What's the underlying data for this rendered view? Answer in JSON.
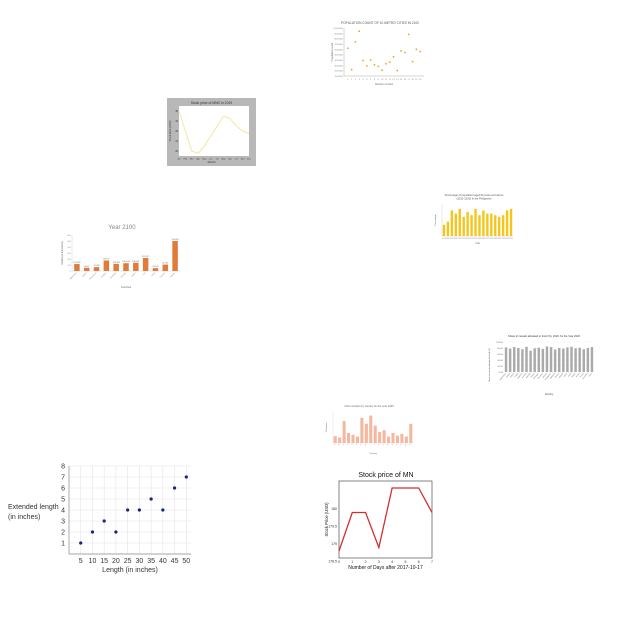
{
  "chart_data": [
    {
      "id": "pop-scatter",
      "type": "scatter",
      "title": "POPULATION COUNT OF 10 METRO CITIES IN 2100",
      "xlabel": "Number of cities",
      "ylabel": "Population count",
      "x": [
        1,
        2,
        3,
        4,
        5,
        6,
        7,
        8,
        9,
        10,
        11,
        12,
        13,
        14,
        15,
        16,
        17,
        18,
        19,
        20
      ],
      "y": [
        5200000,
        1200000,
        6400000,
        8400000,
        2900000,
        1900000,
        3000000,
        2100000,
        1800000,
        1100000,
        2300000,
        2600000,
        3600000,
        1000000,
        4700000,
        4400000,
        7800000,
        2700000,
        5000000,
        4600000
      ],
      "xlim": [
        0,
        21
      ],
      "ylim": [
        0,
        9000000
      ],
      "yticks": [
        "10000000",
        "9000000",
        "8000000",
        "7000000",
        "6000000",
        "5000000",
        "4000000",
        "3000000",
        "2000000",
        "1000000"
      ],
      "color": "#f0a030"
    },
    {
      "id": "mno-line",
      "type": "line",
      "title": "Stock price of MNO in 2019",
      "xlabel": "Month",
      "ylabel": "Stock price (USD)",
      "x": [
        1,
        2,
        3,
        4,
        5,
        6,
        7,
        8,
        9,
        10,
        11,
        12
      ],
      "y": [
        36,
        28,
        20,
        19,
        22,
        26,
        30,
        34,
        33,
        30,
        28,
        27
      ],
      "ylim": [
        18,
        38
      ],
      "xticks": [
        "Jan",
        "Feb",
        "Mar",
        "Apr",
        "May",
        "Jun",
        "Jul",
        "Aug",
        "Sep",
        "Oct",
        "Nov",
        "Dec"
      ],
      "yticks": [
        "36",
        "32",
        "28",
        "24",
        "20"
      ],
      "color": "#f5e6a0",
      "frame_color": "#b8b8b8"
    },
    {
      "id": "age-bar",
      "type": "bar",
      "title": "Percentage of population aged 60 years and above",
      "subtitle": "(2015–2100) in the Philippines",
      "xlabel": "Year",
      "ylabel": "Percentage",
      "categories": [
        "2015",
        "2020",
        "2025",
        "2030",
        "2035",
        "2040",
        "2045",
        "2050",
        "2055",
        "2060",
        "2065",
        "2070",
        "2075",
        "2080",
        "2085",
        "2090",
        "2095",
        "2100"
      ],
      "values": [
        7,
        9,
        16,
        14,
        17,
        12,
        15,
        13,
        17,
        13,
        16,
        14,
        14,
        13,
        12,
        13,
        16,
        17
      ],
      "ylim": [
        0,
        20
      ],
      "color": "#f5c518"
    },
    {
      "id": "year2100-bar",
      "type": "bar",
      "title": "Year 2100",
      "xlabel": "Countries",
      "ylabel": "Deaths (in thousands)",
      "categories": [
        "Afghanistan",
        "Algeria",
        "Bangladesh",
        "Belgium",
        "Cambodia",
        "Ethiopia",
        "Gabon",
        "Iran",
        "Kenya",
        "Pakistan",
        "Uganda"
      ],
      "values": [
        125.356,
        58.52,
        70.485,
        189.73,
        128.184,
        140.443,
        148.187,
        235.527,
        51.245,
        115.69,
        541.661
      ],
      "labels": [
        "125.356",
        "58.52",
        "70.485",
        "189.73",
        "128.184",
        "140.443",
        "148.187",
        "235.527",
        "51.245",
        "115.69",
        "541.661"
      ],
      "ylim": [
        0,
        650
      ],
      "yticks": [
        "600",
        "500",
        "400",
        "300",
        "200",
        "100",
        "0"
      ],
      "color": "#e07b39"
    },
    {
      "id": "food-share-bar",
      "type": "bar",
      "title": "Share of cereals allocated to food (%), 2020, for the Year 2020",
      "xlabel": "Country",
      "ylabel": "Share of cereals allocated to food (%)",
      "categories": [
        "Afghanistan",
        "Albania",
        "Algeria",
        "Angola",
        "Argentina",
        "Armenia",
        "Australia",
        "Austria",
        "Azerbaijan",
        "Bahamas",
        "Bahrain",
        "Bangladesh",
        "Barbados",
        "Belarus",
        "Belgium",
        "Belize",
        "Benin",
        "Bhutan",
        "Bolivia",
        "Bosnia",
        "Botswana",
        "Brazil"
      ],
      "values": [
        82,
        78,
        83,
        80,
        76,
        84,
        71,
        79,
        81,
        77,
        85,
        83,
        75,
        80,
        78,
        82,
        84,
        79,
        81,
        76,
        80,
        83
      ],
      "ylim": [
        0,
        100
      ],
      "yticks": [
        "100.00",
        "80.00",
        "60.00",
        "40.00",
        "20.00",
        "0.00"
      ],
      "color": "#aaaaaa"
    },
    {
      "id": "salmon-bar",
      "type": "bar",
      "title": "CO2 emission by country for the year 2020",
      "xlabel": "Country",
      "ylabel": "Emission",
      "categories": [
        "A",
        "B",
        "C",
        "D",
        "E",
        "F",
        "G",
        "H",
        "I",
        "J",
        "K",
        "L",
        "M",
        "N",
        "O",
        "P",
        "Q",
        "R"
      ],
      "values": [
        15,
        12,
        48,
        22,
        18,
        14,
        55,
        42,
        60,
        38,
        24,
        28,
        14,
        22,
        16,
        20,
        14,
        42
      ],
      "ylim": [
        0,
        70
      ],
      "color": "#f4b8a0"
    },
    {
      "id": "length-scatter",
      "type": "scatter",
      "xlabel": "Length (in inches)",
      "ylabel": "Extended length (in inches)",
      "x": [
        5,
        10,
        15,
        20,
        25,
        30,
        35,
        40,
        45,
        50
      ],
      "y": [
        1,
        2,
        3,
        2,
        4,
        4,
        5,
        4,
        6,
        7
      ],
      "xlim": [
        0,
        52
      ],
      "ylim": [
        0,
        8
      ],
      "xticks": [
        "5",
        "10",
        "15",
        "20",
        "25",
        "30",
        "35",
        "40",
        "45",
        "50"
      ],
      "yticks": [
        "1",
        "2",
        "3",
        "4",
        "5",
        "6",
        "7",
        "8"
      ],
      "color": "#1a237e"
    },
    {
      "id": "mn-line",
      "type": "line",
      "title": "Stock price of MN",
      "xlabel": "Number of Days after 2017-10-17",
      "ylabel": "Stock Price (USD)",
      "x": [
        0,
        1,
        2,
        3,
        4,
        5,
        6,
        7
      ],
      "y": [
        178.8,
        179.9,
        179.9,
        178.9,
        180.6,
        180.6,
        180.6,
        179.9
      ],
      "xlim": [
        0,
        7
      ],
      "ylim": [
        178.6,
        180.8
      ],
      "xticks": [
        "0",
        "1",
        "2",
        "3",
        "4",
        "5",
        "6",
        "7"
      ],
      "yticks": [
        "180",
        "179.5",
        "179",
        "178.5"
      ],
      "color": "#d32f2f"
    }
  ]
}
